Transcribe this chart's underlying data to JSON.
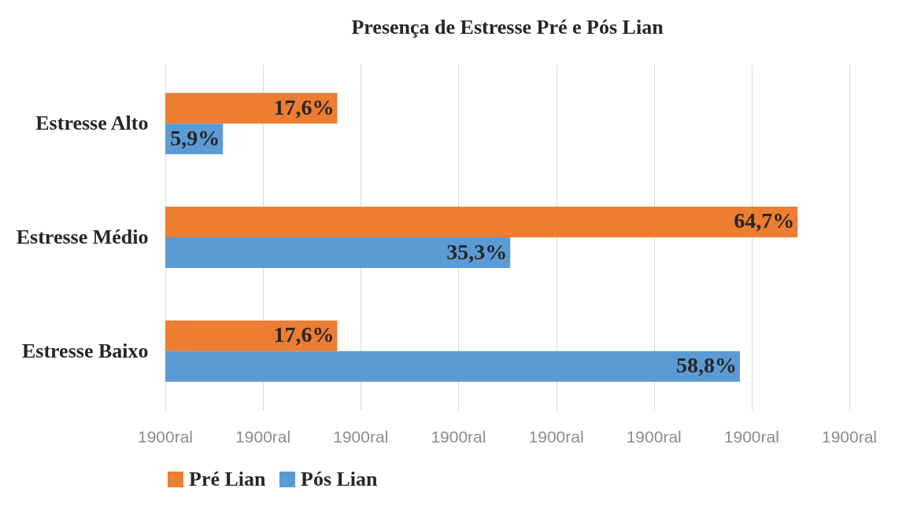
{
  "chart_data": {
    "type": "bar",
    "orientation": "horizontal",
    "title": "Presença de Estresse Pré e Pós Lian",
    "categories": [
      "Estresse Alto",
      "Estresse Médio",
      "Estresse Baixo"
    ],
    "series": [
      {
        "name": "Pré Lian",
        "color": "#ed7d31",
        "values": [
          17.6,
          64.7,
          17.6
        ],
        "value_labels": [
          "17,6%",
          "64,7%",
          "17,6%"
        ]
      },
      {
        "name": "Pós Lian",
        "color": "#5b9bd5",
        "values": [
          5.9,
          35.3,
          58.8
        ],
        "value_labels": [
          "5,9%",
          "35,3%",
          "58,8%"
        ]
      }
    ],
    "xlim": [
      0,
      70
    ],
    "xticks": [
      {
        "value": 0,
        "label": null
      },
      {
        "value": 10,
        "label": null
      },
      {
        "value": 20,
        "label": null
      },
      {
        "value": 30,
        "label": null
      },
      {
        "value": 40,
        "label": null
      },
      {
        "value": 50,
        "label": null
      },
      {
        "value": 60,
        "label": null
      },
      {
        "value": 70,
        "label": null
      }
    ],
    "annotations": [
      "1900ral",
      "1900ral",
      "1900ral",
      "1900ral",
      "1900ral",
      "1900ral",
      "1900ral",
      "1900ral"
    ],
    "grid": "x",
    "legend": "bottom"
  }
}
